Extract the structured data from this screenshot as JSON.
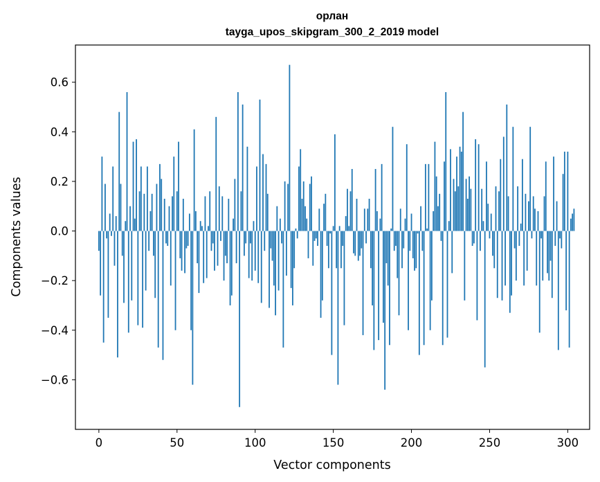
{
  "chart_data": {
    "type": "bar",
    "title": "орлан",
    "subtitle": "tayga_upos_skipgram_300_2_2019 model",
    "xlabel": "Vector components",
    "ylabel": "Components values",
    "xlim": [
      -15,
      314
    ],
    "ylim": [
      -0.8,
      0.75
    ],
    "x_ticks": [
      0,
      50,
      100,
      150,
      200,
      250,
      300
    ],
    "y_ticks": [
      -0.6,
      -0.4,
      -0.2,
      0.0,
      0.2,
      0.4,
      0.6
    ],
    "y_tick_labels": [
      "−0.6",
      "−0.4",
      "−0.2",
      "0.0",
      "0.2",
      "0.4",
      "0.6"
    ],
    "bar_color": "#1f77b4",
    "values": [
      -0.08,
      -0.26,
      0.3,
      -0.45,
      0.19,
      -0.03,
      -0.35,
      0.07,
      -0.02,
      0.26,
      -0.14,
      0.06,
      -0.51,
      0.48,
      0.19,
      -0.1,
      -0.29,
      0.04,
      0.56,
      -0.41,
      0.1,
      -0.28,
      0.36,
      0.05,
      0.37,
      -0.38,
      0.16,
      0.26,
      -0.39,
      0.15,
      -0.24,
      0.26,
      -0.08,
      0.08,
      0.15,
      -0.1,
      -0.27,
      0.19,
      -0.47,
      0.27,
      0.21,
      -0.52,
      0.13,
      -0.05,
      -0.06,
      0.1,
      -0.22,
      0.14,
      0.3,
      -0.4,
      0.16,
      0.36,
      -0.11,
      -0.16,
      0.13,
      -0.17,
      -0.07,
      -0.06,
      0.07,
      -0.4,
      -0.62,
      0.41,
      0.08,
      -0.13,
      -0.25,
      0.04,
      0.02,
      -0.21,
      0.14,
      -0.19,
      0.02,
      0.16,
      -0.08,
      -0.05,
      -0.16,
      0.46,
      -0.14,
      0.18,
      -0.04,
      0.14,
      -0.2,
      -0.1,
      -0.13,
      0.13,
      -0.3,
      -0.26,
      0.05,
      0.21,
      -0.13,
      0.56,
      -0.71,
      0.16,
      0.51,
      -0.1,
      -0.05,
      0.34,
      -0.19,
      -0.05,
      -0.2,
      0.04,
      -0.16,
      0.26,
      -0.21,
      0.53,
      -0.29,
      0.31,
      -0.08,
      0.27,
      0.15,
      -0.31,
      -0.07,
      -0.12,
      -0.22,
      -0.34,
      0.1,
      -0.24,
      0.05,
      -0.05,
      -0.47,
      0.2,
      -0.18,
      0.19,
      0.67,
      -0.23,
      -0.3,
      -0.15,
      0.01,
      -0.03,
      0.26,
      0.33,
      0.13,
      0.2,
      0.1,
      0.05,
      -0.11,
      0.19,
      0.22,
      -0.14,
      -0.04,
      -0.03,
      -0.06,
      0.09,
      -0.35,
      -0.28,
      0.11,
      0.15,
      -0.06,
      -0.15,
      -0.01,
      -0.5,
      0.02,
      0.39,
      -0.15,
      -0.62,
      0.02,
      -0.15,
      -0.06,
      -0.38,
      0.06,
      0.17,
      0.02,
      0.16,
      0.25,
      -0.09,
      -0.1,
      0.13,
      -0.12,
      -0.1,
      -0.07,
      -0.42,
      0.09,
      -0.05,
      0.09,
      0.13,
      -0.15,
      -0.3,
      -0.48,
      0.25,
      0.08,
      -0.44,
      0.05,
      0.27,
      -0.37,
      -0.64,
      -0.13,
      -0.22,
      -0.46,
      0.01,
      0.42,
      -0.08,
      -0.06,
      -0.19,
      -0.34,
      0.09,
      -0.15,
      -0.07,
      0.05,
      0.35,
      -0.4,
      -0.08,
      0.07,
      -0.11,
      -0.16,
      -0.15,
      -0.01,
      -0.5,
      0.1,
      -0.08,
      -0.46,
      0.27,
      0.01,
      0.27,
      -0.4,
      -0.28,
      0.08,
      0.36,
      0.22,
      0.1,
      0.15,
      -0.04,
      -0.46,
      0.28,
      0.56,
      -0.43,
      0.04,
      0.33,
      -0.17,
      0.21,
      0.16,
      0.3,
      0.18,
      0.34,
      0.32,
      0.48,
      -0.28,
      0.21,
      0.13,
      0.22,
      0.17,
      -0.06,
      -0.05,
      0.37,
      -0.36,
      0.35,
      -0.08,
      0.17,
      0.04,
      -0.55,
      0.28,
      0.11,
      -0.03,
      0.07,
      -0.1,
      -0.15,
      0.18,
      -0.27,
      0.16,
      0.29,
      -0.28,
      0.38,
      -0.22,
      0.51,
      0.14,
      -0.33,
      -0.26,
      0.42,
      -0.07,
      -0.2,
      0.18,
      -0.06,
      0.03,
      0.29,
      -0.22,
      0.15,
      -0.16,
      0.12,
      0.42,
      -0.03,
      0.14,
      0.09,
      -0.22,
      0.08,
      -0.41,
      -0.03,
      -0.2,
      0.14,
      0.28,
      -0.17,
      -0.2,
      -0.12,
      -0.27,
      0.3,
      -0.06,
      0.12,
      -0.48,
      -0.03,
      -0.07,
      0.23,
      0.32,
      -0.32,
      0.32,
      -0.47,
      0.05,
      0.07,
      0.09
    ]
  }
}
